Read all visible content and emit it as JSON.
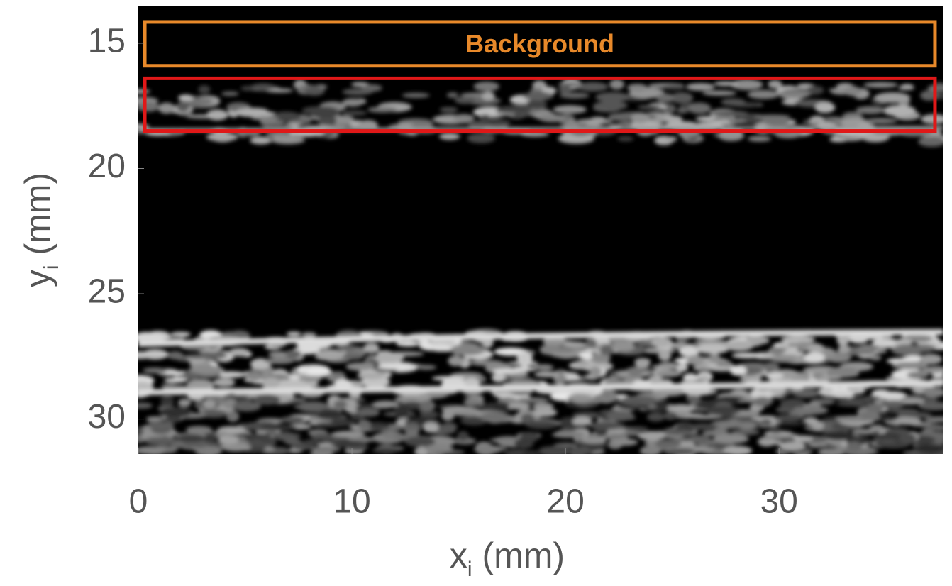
{
  "chart_data": {
    "type": "image",
    "xlabel": {
      "symbol": "x",
      "subscript": "i",
      "unit": "(mm)"
    },
    "ylabel": {
      "symbol": "y",
      "subscript": "i",
      "unit": "(mm)"
    },
    "xlim": [
      0,
      37.7
    ],
    "ylim": [
      31.4,
      13.5
    ],
    "xticks": [
      0,
      10,
      20,
      30
    ],
    "yticks": [
      15,
      20,
      25,
      30
    ],
    "regions": [
      {
        "label": "Background",
        "color": "#e8892a",
        "x": [
          0.3,
          37.3
        ],
        "y": [
          14.15,
          15.9
        ]
      },
      {
        "color": "#e01818",
        "x": [
          0.3,
          37.3
        ],
        "y": [
          16.4,
          18.5
        ]
      }
    ]
  }
}
